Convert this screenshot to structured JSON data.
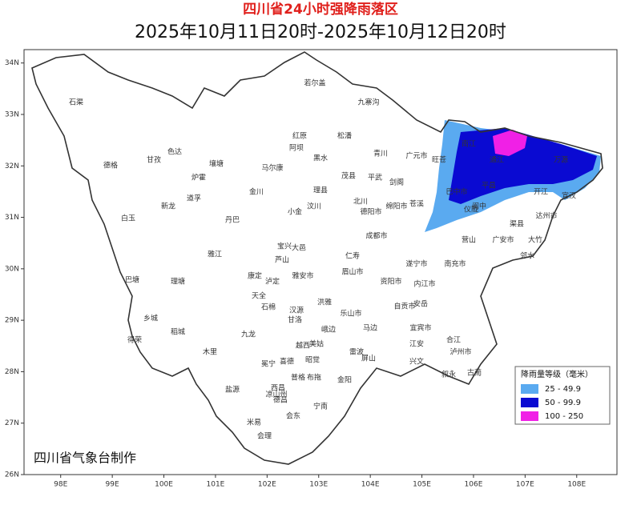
{
  "header": {
    "title": "四川省24小时强降雨落区",
    "subtitle": "2025年10月11日20时-2025年10月12日20时"
  },
  "axes": {
    "xlim": [
      97.29,
      108.78
    ],
    "ylim": [
      26,
      34.26
    ],
    "xticks": [
      {
        "value": 98,
        "label": "98E"
      },
      {
        "value": 99,
        "label": "99E"
      },
      {
        "value": 100,
        "label": "100E"
      },
      {
        "value": 101,
        "label": "101E"
      },
      {
        "value": 102,
        "label": "102E"
      },
      {
        "value": 103,
        "label": "103E"
      },
      {
        "value": 104,
        "label": "104E"
      },
      {
        "value": 105,
        "label": "105E"
      },
      {
        "value": 106,
        "label": "106E"
      },
      {
        "value": 107,
        "label": "107E"
      },
      {
        "value": 108,
        "label": "108E"
      }
    ],
    "yticks": [
      {
        "value": 26,
        "label": "26N"
      },
      {
        "value": 27,
        "label": "27N"
      },
      {
        "value": 28,
        "label": "28N"
      },
      {
        "value": 29,
        "label": "29N"
      },
      {
        "value": 30,
        "label": "30N"
      },
      {
        "value": 31,
        "label": "31N"
      },
      {
        "value": 32,
        "label": "32N"
      },
      {
        "value": 33,
        "label": "33N"
      },
      {
        "value": 34,
        "label": "34N"
      }
    ]
  },
  "legend": {
    "title": "降雨量等级（毫米）",
    "items": [
      {
        "label": "25 - 49.9",
        "color": "#5aaaf0"
      },
      {
        "label": "50 - 99.9",
        "color": "#0a0ad2"
      },
      {
        "label": "100 - 250",
        "color": "#f020e6"
      }
    ]
  },
  "credit": "四川省气象台制作",
  "places": [
    "石渠",
    "德格",
    "甘孜",
    "色达",
    "白玉",
    "巴塘",
    "理塘",
    "乡城",
    "得荣",
    "稻城",
    "木里",
    "九龙",
    "康定",
    "泸定",
    "丹巴",
    "道孚",
    "炉霍",
    "新龙",
    "雅江",
    "壤塘",
    "阿坝",
    "红原",
    "若尔盖",
    "九寨沟",
    "松潘",
    "黑水",
    "茂县",
    "理县",
    "马尔康",
    "金川",
    "小金",
    "汶川",
    "青川",
    "平武",
    "北川",
    "绵阳市",
    "广元市",
    "旺苍",
    "南江",
    "通江",
    "万源",
    "巴中市",
    "达州市",
    "南充市",
    "遂宁市",
    "德阳市",
    "成都市",
    "雅安市",
    "乐山市",
    "眉山市",
    "宜宾市",
    "泸州市",
    "自贡市",
    "内江市",
    "资阳市",
    "广安市",
    "西昌",
    "凉山州",
    "会东",
    "会理",
    "宁南",
    "普格",
    "布拖",
    "昭觉",
    "美姑",
    "雷波",
    "甘洛",
    "越西",
    "喜德",
    "冕宁",
    "盐源",
    "德昌",
    "米易",
    "石棉",
    "汉源",
    "峨边",
    "马边",
    "屏山",
    "兴文",
    "叙永",
    "古蔺",
    "合江",
    "江安",
    "大竹",
    "邻水",
    "渠县",
    "宣汉",
    "开江",
    "平昌",
    "仪陇",
    "营山",
    "苍溪",
    "剑阁",
    "阆中",
    "安岳",
    "仁寿",
    "大邑",
    "天全",
    "宝兴",
    "芦山",
    "洪雅",
    "金阳"
  ]
}
